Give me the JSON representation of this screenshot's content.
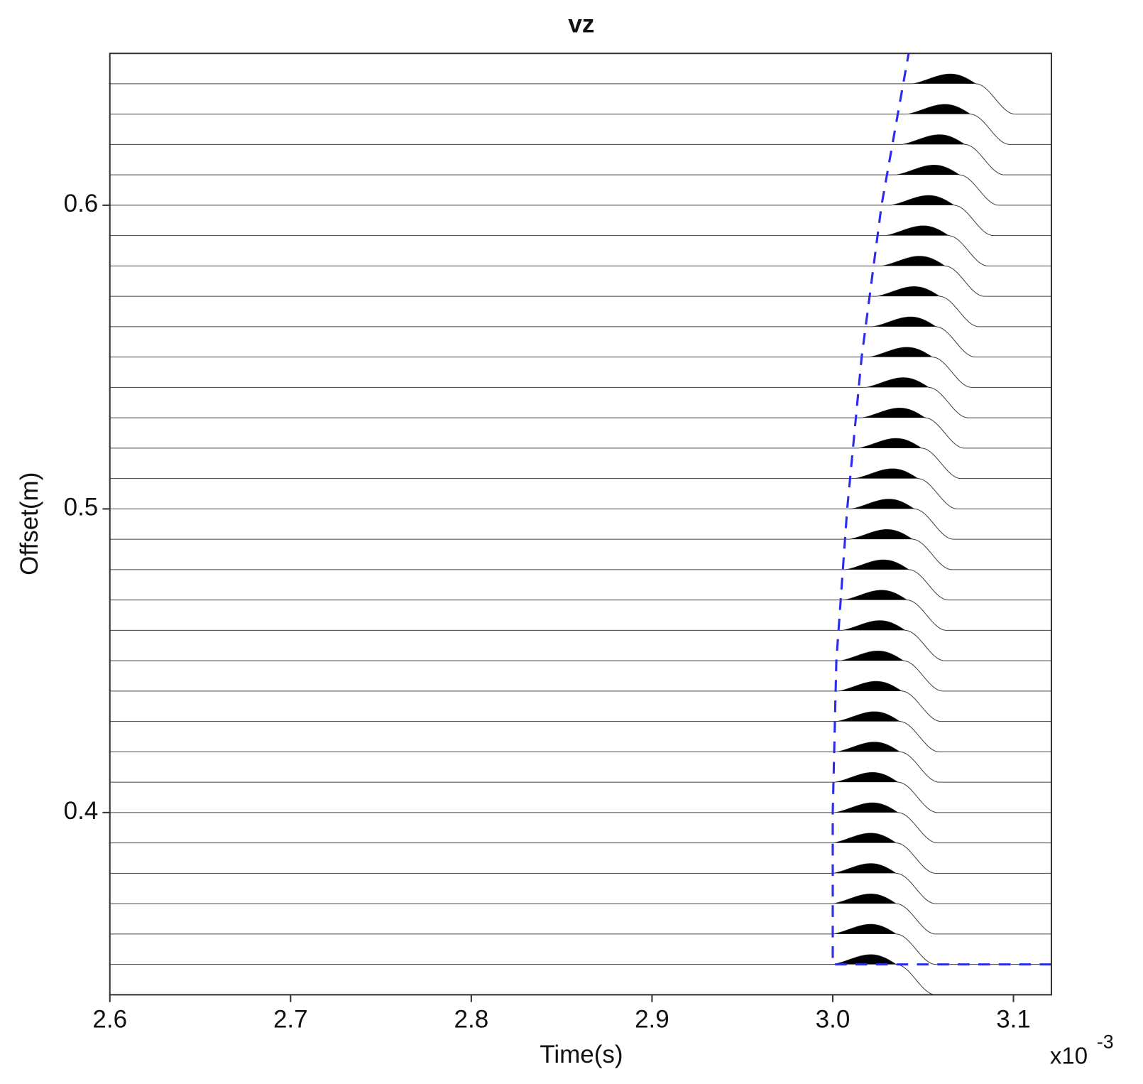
{
  "chart_data": {
    "type": "wiggle",
    "title": "vz",
    "x_label": "Time(s)",
    "x_multiplier": "x10",
    "x_exponent": "-3",
    "y_label": "Offset(m)",
    "xlim": [
      2.6,
      3.121
    ],
    "ylim": [
      0.34,
      0.65
    ],
    "xticks": [
      2.6,
      2.7,
      2.8,
      2.9,
      {
        "value": 3,
        "label": "3.0"
      },
      3.1
    ],
    "yticks": [
      0.4,
      0.5,
      0.6
    ],
    "trace_color": "#000000",
    "offsets": [
      0.35,
      0.36,
      0.37,
      0.38,
      0.39,
      0.4,
      0.41,
      0.42,
      0.43,
      0.44,
      0.45,
      0.46,
      0.47,
      0.48,
      0.49,
      0.5,
      0.51,
      0.52,
      0.53,
      0.54,
      0.55,
      0.56,
      0.57,
      0.58,
      0.59,
      0.6,
      0.61,
      0.62,
      0.63,
      0.64
    ],
    "onset_times": [
      3.0,
      3.0,
      3.0,
      3.0,
      3.0,
      3.001,
      3.001,
      3.002,
      3.002,
      3.003,
      3.004,
      3.005,
      3.006,
      3.007,
      3.009,
      3.01,
      3.012,
      3.014,
      3.016,
      3.018,
      3.02,
      3.022,
      3.024,
      3.027,
      3.029,
      3.032,
      3.035,
      3.038,
      3.041,
      3.044
    ],
    "picks": {
      "color": "#2a2af0",
      "x": [
        3.121,
        3.0,
        3.0,
        3.002,
        3.008,
        3.016,
        3.027,
        3.042
      ],
      "y": [
        0.35,
        0.35,
        0.4,
        0.45,
        0.5,
        0.55,
        0.6,
        0.65
      ]
    }
  }
}
